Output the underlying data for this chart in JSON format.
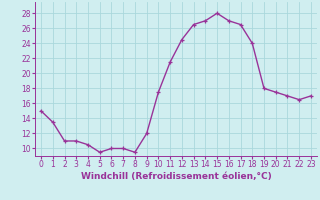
{
  "x": [
    0,
    1,
    2,
    3,
    4,
    5,
    6,
    7,
    8,
    9,
    10,
    11,
    12,
    13,
    14,
    15,
    16,
    17,
    18,
    19,
    20,
    21,
    22,
    23
  ],
  "y": [
    15,
    13.5,
    11,
    11,
    10.5,
    9.5,
    10,
    10,
    9.5,
    12,
    17.5,
    21.5,
    24.5,
    26.5,
    27,
    28,
    27,
    26.5,
    24,
    18,
    17.5,
    17,
    16.5,
    17
  ],
  "line_color": "#993399",
  "marker": "+",
  "marker_size": 3,
  "linewidth": 1.0,
  "xlabel": "Windchill (Refroidissement éolien,°C)",
  "xlabel_fontsize": 6.5,
  "ylabel_ticks": [
    10,
    12,
    14,
    16,
    18,
    20,
    22,
    24,
    26,
    28
  ],
  "xtick_labels": [
    "0",
    "1",
    "2",
    "3",
    "4",
    "5",
    "6",
    "7",
    "8",
    "9",
    "10",
    "11",
    "12",
    "13",
    "14",
    "15",
    "16",
    "17",
    "18",
    "19",
    "20",
    "21",
    "22",
    "23"
  ],
  "xlim": [
    -0.5,
    23.5
  ],
  "ylim": [
    9,
    29.5
  ],
  "bg_color": "#d0eef0",
  "grid_color": "#aad8dc",
  "tick_fontsize": 5.5,
  "marker_edge_width": 0.9
}
